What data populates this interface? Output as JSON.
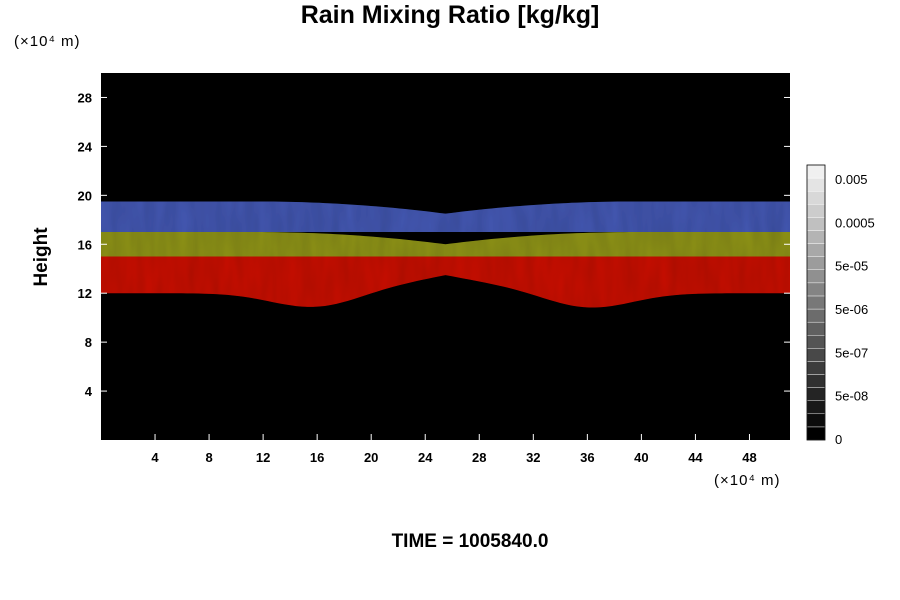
{
  "chart_data": {
    "type": "heatmap",
    "title": "Rain Mixing Ratio [kg/kg]",
    "ylabel": "Height",
    "xlabel": "",
    "x_unit": "(×10⁴ m)",
    "y_unit": "(×10⁴ m)",
    "xlim": [
      0,
      51
    ],
    "ylim": [
      0,
      30
    ],
    "x_ticks": [
      4,
      8,
      12,
      16,
      20,
      24,
      28,
      32,
      36,
      40,
      44,
      48
    ],
    "y_ticks": [
      4,
      8,
      12,
      16,
      20,
      24,
      28
    ],
    "background_color": "#000000",
    "bands": [
      {
        "color": "#4a5fc0",
        "y_bottom_edge": 17.0,
        "y_top_edge": 19.5,
        "y_top_center": 18.5
      },
      {
        "color": "#9aa020",
        "y_bottom_edge": 15.0,
        "y_top_edge": 17.0,
        "y_top_center": 16.0
      },
      {
        "color": "#d81a10",
        "y_bottom_edge": 12.0,
        "y_top_edge": 15.0,
        "y_bottom_center": 13.5,
        "y_bottom_min": 10.6
      }
    ],
    "colorbar": {
      "labels": [
        "0.005",
        "0.0005",
        "5e-05",
        "5e-06",
        "5e-07",
        "5e-08",
        "0"
      ],
      "grays": [
        "#000000",
        "#0c0c0c",
        "#181818",
        "#242424",
        "#303030",
        "#3c3c3c",
        "#484848",
        "#545454",
        "#606060",
        "#6c6c6c",
        "#787878",
        "#848484",
        "#909090",
        "#9c9c9c",
        "#a8a8a8",
        "#b4b4b4",
        "#c0c0c0",
        "#cccccc",
        "#d8d8d8",
        "#e4e4e4",
        "#f0f0f0"
      ]
    }
  },
  "time_label": "TIME = 1005840.0"
}
